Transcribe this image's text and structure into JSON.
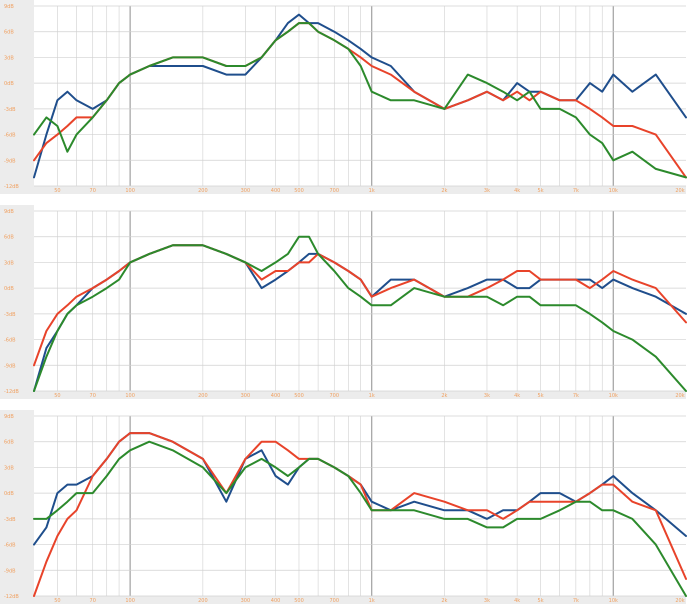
{
  "colors": {
    "blue": "#1f4e8c",
    "red": "#e8432a",
    "green": "#2c8a2c",
    "label": "#f0a060",
    "grid": "#d0d0d0",
    "grid_major": "#a0a0a0",
    "axis_bg": "#ececec"
  },
  "chart_data": [
    {
      "type": "line",
      "title": "",
      "xlabel": "",
      "ylabel": "",
      "xscale": "log",
      "xlim": [
        40,
        20000
      ],
      "ylim": [
        -12,
        9
      ],
      "grid": true,
      "x_tick_labels": [
        "50",
        "70",
        "100",
        "200",
        "300",
        "400",
        "500",
        "700",
        "1k",
        "2k",
        "3k",
        "4k",
        "5k",
        "7k",
        "10k",
        "20k"
      ],
      "x_tick_values": [
        50,
        70,
        100,
        200,
        300,
        400,
        500,
        700,
        1000,
        2000,
        3000,
        4000,
        5000,
        7000,
        10000,
        20000
      ],
      "y_tick_labels": [
        "9dB",
        "6dB",
        "3dB",
        "0dB",
        "-3dB",
        "-6dB",
        "-9dB",
        "-12dB"
      ],
      "y_tick_values": [
        9,
        6,
        3,
        0,
        -3,
        -6,
        -9,
        -12
      ],
      "x": [
        40,
        45,
        50,
        55,
        60,
        70,
        80,
        90,
        100,
        120,
        150,
        200,
        250,
        300,
        350,
        400,
        450,
        500,
        550,
        600,
        700,
        800,
        900,
        1000,
        1200,
        1500,
        2000,
        2500,
        3000,
        3500,
        4000,
        4500,
        5000,
        6000,
        7000,
        8000,
        9000,
        10000,
        12000,
        15000,
        20000
      ],
      "series": [
        {
          "color": "blue",
          "values": [
            -11,
            -6,
            -2,
            -1,
            -2,
            -3,
            -2,
            0,
            1,
            2,
            2,
            2,
            1,
            1,
            3,
            5,
            7,
            8,
            7,
            7,
            6,
            5,
            4,
            3,
            2,
            -1,
            -3,
            -2,
            -1,
            -2,
            0,
            -1,
            -1,
            -2,
            -2,
            0,
            -1,
            1,
            -1,
            1,
            -4
          ]
        },
        {
          "color": "red",
          "values": [
            -9,
            -7,
            -6,
            -5,
            -4,
            -4,
            -2,
            0,
            1,
            2,
            3,
            3,
            2,
            2,
            3,
            5,
            6,
            7,
            7,
            6,
            5,
            4,
            3,
            2,
            1,
            -1,
            -3,
            -2,
            -1,
            -2,
            -1,
            -2,
            -1,
            -2,
            -2,
            -3,
            -4,
            -5,
            -5,
            -6,
            -11
          ]
        },
        {
          "color": "green",
          "values": [
            -6,
            -4,
            -5,
            -8,
            -6,
            -4,
            -2,
            0,
            1,
            2,
            3,
            3,
            2,
            2,
            3,
            5,
            6,
            7,
            7,
            6,
            5,
            4,
            2,
            -1,
            -2,
            -2,
            -3,
            1,
            0,
            -1,
            -2,
            -1,
            -3,
            -3,
            -4,
            -6,
            -7,
            -9,
            -8,
            -10,
            -11
          ]
        }
      ]
    },
    {
      "type": "line",
      "title": "",
      "xlabel": "",
      "ylabel": "",
      "xscale": "log",
      "xlim": [
        40,
        20000
      ],
      "ylim": [
        -12,
        9
      ],
      "grid": true,
      "x_tick_labels": [
        "50",
        "70",
        "100",
        "200",
        "300",
        "400",
        "500",
        "700",
        "1k",
        "2k",
        "3k",
        "4k",
        "5k",
        "7k",
        "10k",
        "20k"
      ],
      "x_tick_values": [
        50,
        70,
        100,
        200,
        300,
        400,
        500,
        700,
        1000,
        2000,
        3000,
        4000,
        5000,
        7000,
        10000,
        20000
      ],
      "y_tick_labels": [
        "9dB",
        "6dB",
        "3dB",
        "0dB",
        "-3dB",
        "-6dB",
        "-9dB",
        "-12dB"
      ],
      "y_tick_values": [
        9,
        6,
        3,
        0,
        -3,
        -6,
        -9,
        -12
      ],
      "x": [
        40,
        45,
        50,
        55,
        60,
        70,
        80,
        90,
        100,
        120,
        150,
        200,
        250,
        300,
        350,
        400,
        450,
        500,
        550,
        600,
        700,
        800,
        900,
        1000,
        1200,
        1500,
        2000,
        2500,
        3000,
        3500,
        4000,
        4500,
        5000,
        6000,
        7000,
        8000,
        9000,
        10000,
        12000,
        15000,
        20000
      ],
      "series": [
        {
          "color": "blue",
          "values": [
            -13,
            -7,
            -5,
            -3,
            -2,
            0,
            1,
            2,
            3,
            4,
            5,
            5,
            4,
            3,
            0,
            1,
            2,
            3,
            4,
            4,
            3,
            2,
            1,
            -1,
            1,
            1,
            -1,
            0,
            1,
            1,
            0,
            0,
            1,
            1,
            1,
            1,
            0,
            1,
            0,
            -1,
            -3
          ]
        },
        {
          "color": "red",
          "values": [
            -9,
            -5,
            -3,
            -2,
            -1,
            0,
            1,
            2,
            3,
            4,
            5,
            5,
            4,
            3,
            1,
            2,
            2,
            3,
            3,
            4,
            3,
            2,
            1,
            -1,
            0,
            1,
            -1,
            -1,
            0,
            1,
            2,
            2,
            1,
            1,
            1,
            0,
            1,
            2,
            1,
            0,
            -4
          ]
        },
        {
          "color": "green",
          "values": [
            -12,
            -8,
            -5,
            -3,
            -2,
            -1,
            0,
            1,
            3,
            4,
            5,
            5,
            4,
            3,
            2,
            3,
            4,
            6,
            6,
            4,
            2,
            0,
            -1,
            -2,
            -2,
            0,
            -1,
            -1,
            -1,
            -2,
            -1,
            -1,
            -2,
            -2,
            -2,
            -3,
            -4,
            -5,
            -6,
            -8,
            -12
          ]
        }
      ]
    },
    {
      "type": "line",
      "title": "",
      "xlabel": "",
      "ylabel": "",
      "xscale": "log",
      "xlim": [
        40,
        20000
      ],
      "ylim": [
        -12,
        9
      ],
      "grid": true,
      "x_tick_labels": [
        "50",
        "70",
        "100",
        "200",
        "300",
        "400",
        "500",
        "700",
        "1k",
        "2k",
        "3k",
        "4k",
        "5k",
        "7k",
        "10k",
        "20k"
      ],
      "x_tick_values": [
        50,
        70,
        100,
        200,
        300,
        400,
        500,
        700,
        1000,
        2000,
        3000,
        4000,
        5000,
        7000,
        10000,
        20000
      ],
      "y_tick_labels": [
        "9dB",
        "6dB",
        "3dB",
        "0dB",
        "-3dB",
        "-6dB",
        "-9dB",
        "-12dB"
      ],
      "y_tick_values": [
        9,
        6,
        3,
        0,
        -3,
        -6,
        -9,
        -12
      ],
      "x": [
        40,
        45,
        50,
        55,
        60,
        70,
        80,
        90,
        100,
        120,
        150,
        200,
        250,
        300,
        350,
        400,
        450,
        500,
        550,
        600,
        700,
        800,
        900,
        1000,
        1200,
        1500,
        2000,
        2500,
        3000,
        3500,
        4000,
        4500,
        5000,
        6000,
        7000,
        8000,
        9000,
        10000,
        12000,
        15000,
        20000
      ],
      "series": [
        {
          "color": "blue",
          "values": [
            -6,
            -4,
            0,
            1,
            1,
            2,
            4,
            6,
            7,
            7,
            6,
            4,
            -1,
            4,
            5,
            2,
            1,
            3,
            4,
            4,
            3,
            2,
            1,
            -1,
            -2,
            -1,
            -2,
            -2,
            -3,
            -2,
            -2,
            -1,
            0,
            0,
            -1,
            0,
            1,
            2,
            0,
            -2,
            -5
          ]
        },
        {
          "color": "red",
          "values": [
            -12,
            -8,
            -5,
            -3,
            -2,
            2,
            4,
            6,
            7,
            7,
            6,
            4,
            0,
            4,
            6,
            6,
            5,
            4,
            4,
            4,
            3,
            2,
            1,
            -2,
            -2,
            0,
            -1,
            -2,
            -2,
            -3,
            -2,
            -1,
            -1,
            -1,
            -1,
            0,
            1,
            1,
            -1,
            -2,
            -10
          ]
        },
        {
          "color": "green",
          "values": [
            -3,
            -3,
            -2,
            -1,
            0,
            0,
            2,
            4,
            5,
            6,
            5,
            3,
            0,
            3,
            4,
            3,
            2,
            3,
            4,
            4,
            3,
            2,
            0,
            -2,
            -2,
            -2,
            -3,
            -3,
            -4,
            -4,
            -3,
            -3,
            -3,
            -2,
            -1,
            -1,
            -2,
            -2,
            -3,
            -6,
            -12
          ]
        }
      ]
    }
  ]
}
